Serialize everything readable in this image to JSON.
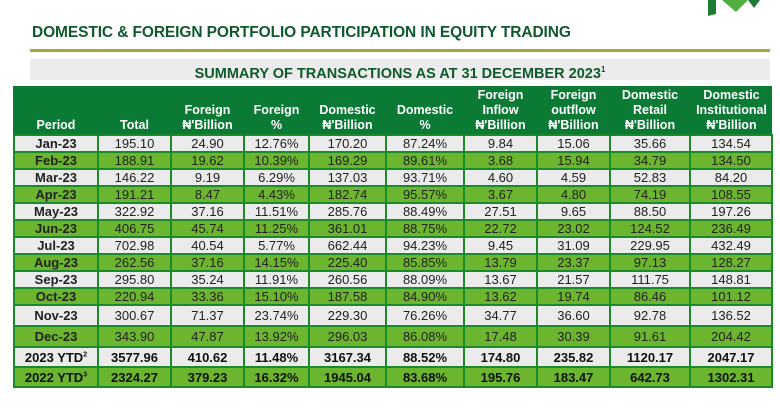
{
  "title": "DOMESTIC & FOREIGN PORTFOLIO PARTICIPATION IN EQUITY TRADING",
  "subtitle": "SUMMARY OF TRANSACTIONS AS AT 31 DECEMBER 2023",
  "subtitle_sup": "1",
  "colors": {
    "header": "#0b7a34",
    "green_row": "#6cb52e",
    "gray_row": "#ebebeb",
    "title": "#0e5a2c"
  },
  "headers": [
    [
      "",
      "",
      "Period"
    ],
    [
      "",
      "",
      "Total"
    ],
    [
      "",
      "Foreign",
      "₦'Billion"
    ],
    [
      "",
      "Foreign",
      "%"
    ],
    [
      "",
      "Domestic",
      "₦'Billion"
    ],
    [
      "",
      "Domestic",
      "%"
    ],
    [
      "Foreign",
      "Inflow",
      "₦'Billion"
    ],
    [
      "Foreign",
      "outflow",
      "₦'Billion"
    ],
    [
      "Domestic",
      "Retail",
      "₦'Billion"
    ],
    [
      "Domestic",
      "Institutional",
      "₦'Billion"
    ]
  ],
  "rows": [
    [
      "Jan-23",
      "195.10",
      "24.90",
      "12.76%",
      "170.20",
      "87.24%",
      "9.84",
      "15.06",
      "35.66",
      "134.54"
    ],
    [
      "Feb-23",
      "188.91",
      "19.62",
      "10.39%",
      "169.29",
      "89.61%",
      "3.68",
      "15.94",
      "34.79",
      "134.50"
    ],
    [
      "Mar-23",
      "146.22",
      "9.19",
      "6.29%",
      "137.03",
      "93.71%",
      "4.60",
      "4.59",
      "52.83",
      "84.20"
    ],
    [
      "Apr-23",
      "191.21",
      "8.47",
      "4.43%",
      "182.74",
      "95.57%",
      "3.67",
      "4.80",
      "74.19",
      "108.55"
    ],
    [
      "May-23",
      "322.92",
      "37.16",
      "11.51%",
      "285.76",
      "88.49%",
      "27.51",
      "9.65",
      "88.50",
      "197.26"
    ],
    [
      "Jun-23",
      "406.75",
      "45.74",
      "11.25%",
      "361.01",
      "88.75%",
      "22.72",
      "23.02",
      "124.52",
      "236.49"
    ],
    [
      "Jul-23",
      "702.98",
      "40.54",
      "5.77%",
      "662.44",
      "94.23%",
      "9.45",
      "31.09",
      "229.95",
      "432.49"
    ],
    [
      "Aug-23",
      "262.56",
      "37.16",
      "14.15%",
      "225.40",
      "85.85%",
      "13.79",
      "23.37",
      "97.13",
      "128.27"
    ],
    [
      "Sep-23",
      "295.80",
      "35.24",
      "11.91%",
      "260.56",
      "88.09%",
      "13.67",
      "21.57",
      "111.75",
      "148.81"
    ],
    [
      "Oct-23",
      "220.94",
      "33.36",
      "15.10%",
      "187.58",
      "84.90%",
      "13.62",
      "19.74",
      "86.46",
      "101.12"
    ],
    [
      "Nov-23",
      "300.67",
      "71.37",
      "23.74%",
      "229.30",
      "76.26%",
      "34.77",
      "36.60",
      "92.78",
      "136.52"
    ],
    [
      "Dec-23",
      "343.90",
      "47.87",
      "13.92%",
      "296.03",
      "86.08%",
      "17.48",
      "30.39",
      "91.61",
      "204.42"
    ]
  ],
  "totals": [
    {
      "label": "2023 YTD",
      "sup": "2",
      "values": [
        "3577.96",
        "410.62",
        "11.48%",
        "3167.34",
        "88.52%",
        "174.80",
        "235.82",
        "1120.17",
        "2047.17"
      ]
    },
    {
      "label": "2022 YTD",
      "sup": "3",
      "values": [
        "2324.27",
        "379.23",
        "16.32%",
        "1945.04",
        "83.68%",
        "195.76",
        "183.47",
        "642.73",
        "1302.31"
      ]
    }
  ]
}
